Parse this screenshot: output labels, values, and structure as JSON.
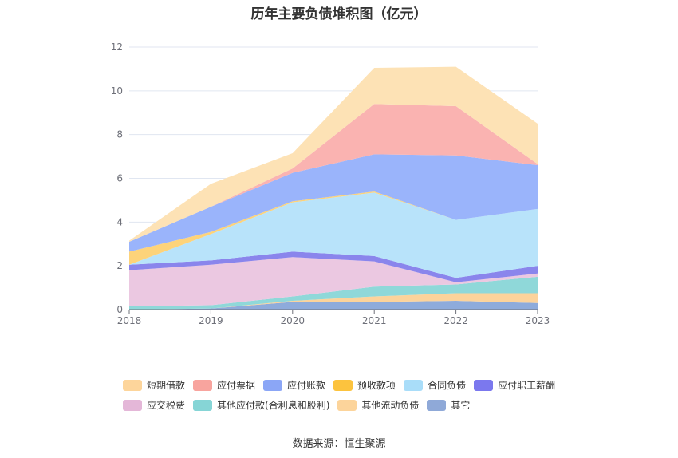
{
  "chart_data": {
    "type": "area",
    "stacked": true,
    "title": "历年主要负债堆积图（亿元）",
    "categories": [
      "2018",
      "2019",
      "2020",
      "2021",
      "2022",
      "2023"
    ],
    "ylim": [
      0,
      12
    ],
    "yticks": [
      "0",
      "2",
      "4",
      "6",
      "8",
      "10",
      "12"
    ],
    "grid": true,
    "legend_position": "bottom",
    "series": [
      {
        "name": "其它",
        "color": "#8eabdb",
        "values": [
          0.0,
          0.05,
          0.35,
          0.35,
          0.4,
          0.3
        ]
      },
      {
        "name": "其他流动负债",
        "color": "#fcd39b",
        "values": [
          0.0,
          0.0,
          0.05,
          0.25,
          0.35,
          0.45
        ]
      },
      {
        "name": "其他应付款(合利息和股利)",
        "color": "#8fd8d9",
        "values": [
          0.15,
          0.15,
          0.2,
          0.45,
          0.4,
          0.75
        ]
      },
      {
        "name": "应交税费",
        "color": "#ebc8e1",
        "values": [
          1.65,
          1.85,
          1.8,
          1.15,
          0.1,
          0.15
        ]
      },
      {
        "name": "应付职工薪酬",
        "color": "#8a85ec",
        "values": [
          0.25,
          0.2,
          0.25,
          0.25,
          0.2,
          0.35
        ]
      },
      {
        "name": "合同负债",
        "color": "#b8e3fa",
        "values": [
          0.0,
          1.2,
          2.25,
          2.9,
          2.65,
          2.6
        ]
      },
      {
        "name": "预收款项",
        "color": "#fdd37a",
        "values": [
          0.6,
          0.1,
          0.05,
          0.05,
          0.0,
          0.0
        ]
      },
      {
        "name": "应付账款",
        "color": "#9ab4fb",
        "values": [
          0.45,
          1.15,
          1.3,
          1.7,
          2.95,
          2.0
        ]
      },
      {
        "name": "应付票据",
        "color": "#fab3b1",
        "values": [
          0.0,
          0.0,
          0.2,
          2.3,
          2.25,
          0.05
        ]
      },
      {
        "name": "短期借款",
        "color": "#fde2b5",
        "values": [
          0.05,
          1.05,
          0.7,
          1.65,
          1.8,
          1.85
        ]
      }
    ],
    "source": "数据来源：恒生聚源"
  },
  "legend": [
    {
      "label": "短期借款",
      "color": "#fdd59b"
    },
    {
      "label": "应付票据",
      "color": "#f8a49e"
    },
    {
      "label": "应付账款",
      "color": "#8ba6f6"
    },
    {
      "label": "预收款项",
      "color": "#fcc33e"
    },
    {
      "label": "合同负债",
      "color": "#a9ddf9"
    },
    {
      "label": "应付职工薪酬",
      "color": "#7b78ee"
    },
    {
      "label": "应交税费",
      "color": "#e4b7d8"
    },
    {
      "label": "其他应付款(合利息和股利)",
      "color": "#86d5d6"
    },
    {
      "label": "其他流动负债",
      "color": "#fcd49b"
    },
    {
      "label": "其它",
      "color": "#8fa9d8"
    }
  ]
}
